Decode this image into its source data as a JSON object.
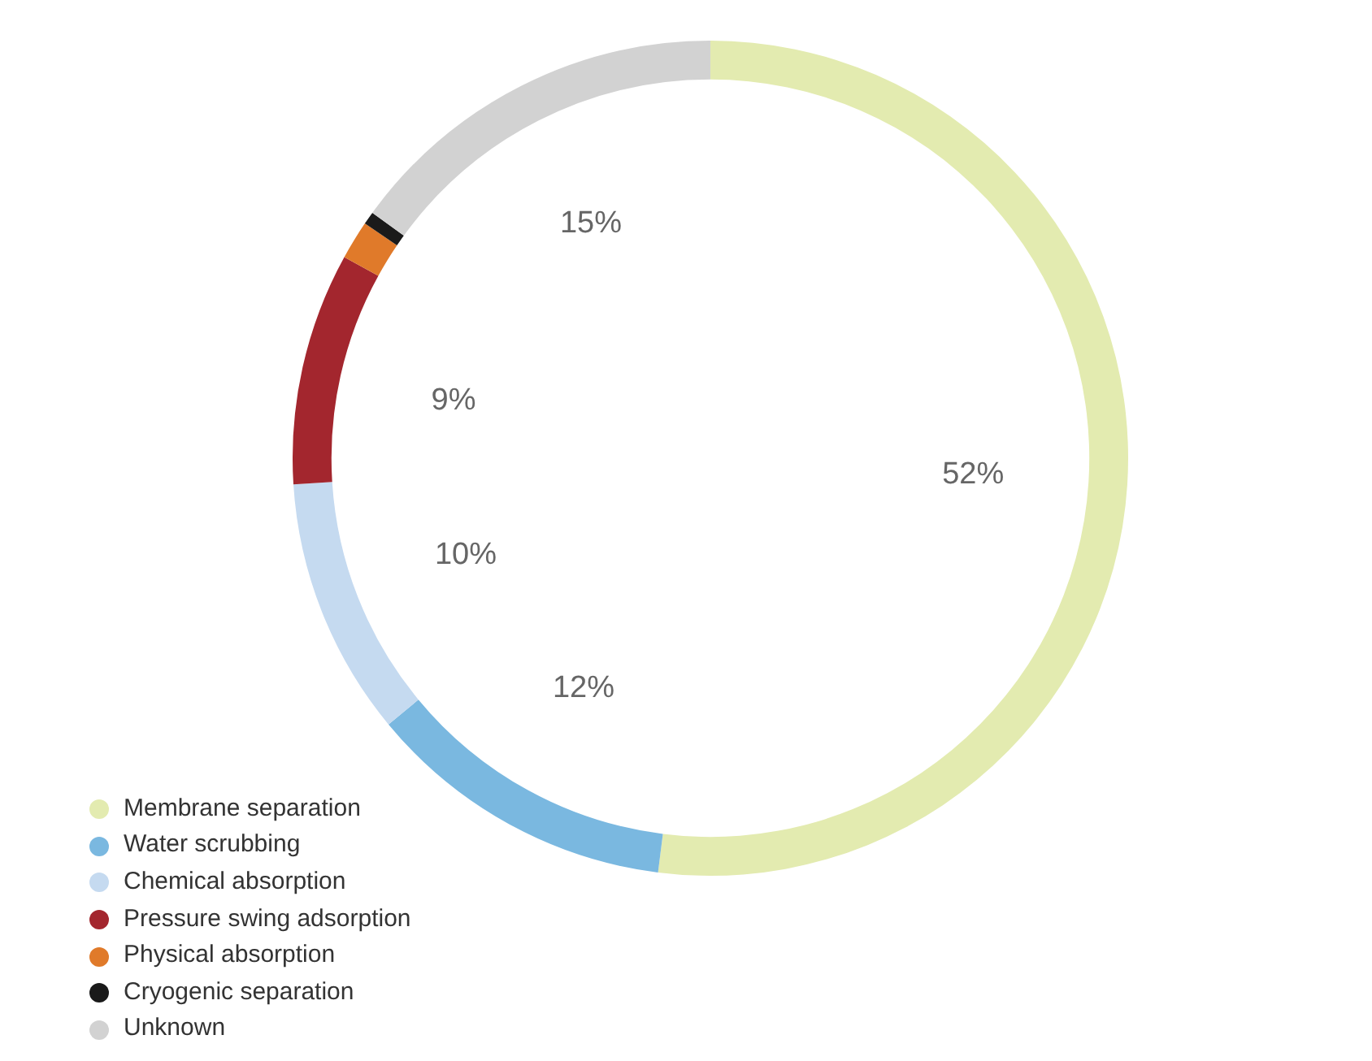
{
  "chart_data": {
    "type": "donut",
    "categories": [
      "Membrane separation",
      "Water scrubbing",
      "Chemical absorption",
      "Pressure swing adsorption",
      "Physical absorption",
      "Cryogenic separation",
      "Unknown"
    ],
    "values": [
      52,
      12,
      10,
      9,
      1.5,
      0.5,
      15
    ],
    "value_labels": [
      "52%",
      "12%",
      "10%",
      "9%",
      null,
      null,
      "15%"
    ],
    "colors": [
      "#e3ebb0",
      "#7ab8e0",
      "#c5daf0",
      "#a3262e",
      "#e07a2a",
      "#1a1a1a",
      "#d2d2d2"
    ],
    "legend": "bottom left"
  }
}
